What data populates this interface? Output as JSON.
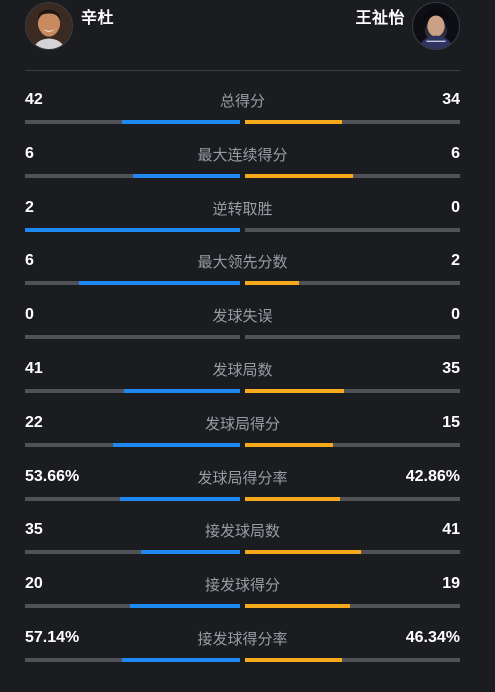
{
  "players": {
    "left": {
      "name": "辛杜",
      "avatar_icon": "player-photo-icon"
    },
    "right": {
      "name": "王祉怡",
      "avatar_icon": "player-photo-icon"
    }
  },
  "colors": {
    "left_accent": "#1e88f0",
    "right_accent": "#f7a91d",
    "bar_track": "#505257",
    "background": "#1b1c20"
  },
  "stats": [
    {
      "label": "总得分",
      "left": "42",
      "right": "34",
      "left_fill": 0.55,
      "right_fill": 0.45
    },
    {
      "label": "最大连续得分",
      "left": "6",
      "right": "6",
      "left_fill": 0.5,
      "right_fill": 0.5
    },
    {
      "label": "逆转取胜",
      "left": "2",
      "right": "0",
      "left_fill": 1.0,
      "right_fill": 0.0
    },
    {
      "label": "最大领先分数",
      "left": "6",
      "right": "2",
      "left_fill": 0.75,
      "right_fill": 0.25
    },
    {
      "label": "发球失误",
      "left": "0",
      "right": "0",
      "left_fill": 0.0,
      "right_fill": 0.0
    },
    {
      "label": "发球局数",
      "left": "41",
      "right": "35",
      "left_fill": 0.54,
      "right_fill": 0.46
    },
    {
      "label": "发球局得分",
      "left": "22",
      "right": "15",
      "left_fill": 0.59,
      "right_fill": 0.41
    },
    {
      "label": "发球局得分率",
      "left": "53.66%",
      "right": "42.86%",
      "left_fill": 0.56,
      "right_fill": 0.44
    },
    {
      "label": "接发球局数",
      "left": "35",
      "right": "41",
      "left_fill": 0.46,
      "right_fill": 0.54
    },
    {
      "label": "接发球得分",
      "left": "20",
      "right": "19",
      "left_fill": 0.51,
      "right_fill": 0.49
    },
    {
      "label": "接发球得分率",
      "left": "57.14%",
      "right": "46.34%",
      "left_fill": 0.55,
      "right_fill": 0.45
    }
  ]
}
